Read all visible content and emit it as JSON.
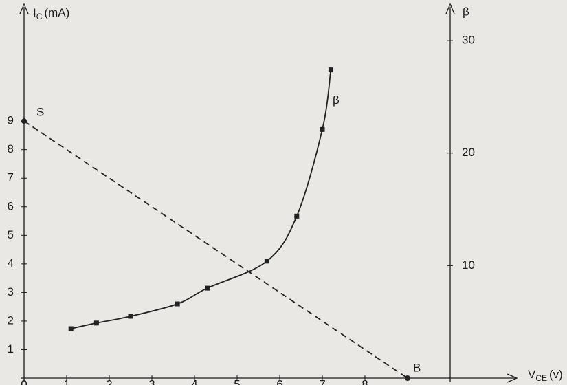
{
  "chart_data": {
    "type": "line",
    "y_label": {
      "symbol": "I",
      "sub": "C",
      "unit": "(mA)"
    },
    "x_label": {
      "symbol": "V",
      "sub": "CE",
      "unit": "(v)"
    },
    "y2_label": "β",
    "xlim": [
      0,
      10
    ],
    "xticks": [
      0,
      1,
      2,
      3,
      4,
      5,
      6,
      7,
      8
    ],
    "ylim": [
      0,
      13
    ],
    "yticks": [
      1,
      2,
      3,
      4,
      5,
      6,
      7,
      8,
      9
    ],
    "y2lim": [
      0,
      33
    ],
    "y2ticks": [
      10,
      20,
      30
    ],
    "series": [
      {
        "name": "S",
        "end_name": "B",
        "color": "#222222",
        "dashed": true,
        "x": [
          0,
          9
        ],
        "values": [
          9,
          0
        ]
      },
      {
        "name": "β",
        "axis": "y2",
        "color": "#222222",
        "dashed": false,
        "x": [
          1.1,
          1.7,
          2.5,
          3.6,
          4.3,
          5.7,
          6.4,
          7.0,
          7.2
        ],
        "values": [
          4.4,
          4.9,
          5.5,
          6.6,
          8.0,
          10.4,
          14.4,
          22.1,
          27.4
        ]
      }
    ]
  }
}
